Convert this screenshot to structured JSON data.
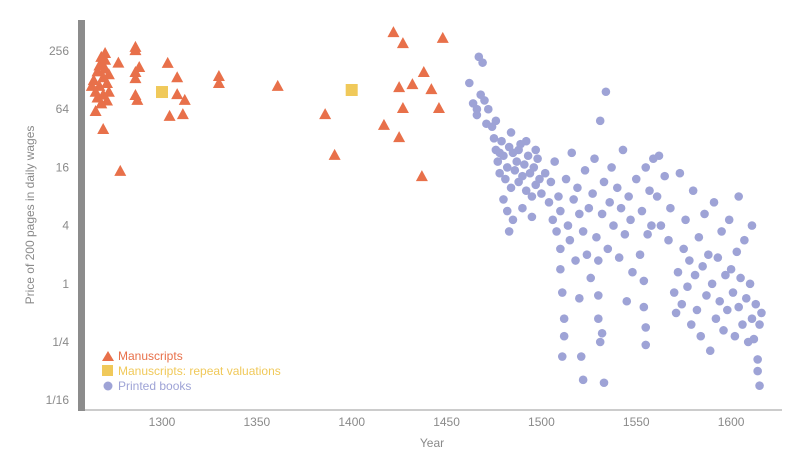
{
  "chart_data": {
    "type": "scatter",
    "title": "",
    "xlabel": "Year",
    "ylabel": "Price of 200 pages in daily wages",
    "y_scale": "log2",
    "y_values_are_log2": true,
    "xlim": [
      1258,
      1627
    ],
    "ylim_log2": [
      -4.3,
      9.1
    ],
    "x_ticks": [
      1300,
      1350,
      1400,
      1450,
      1500,
      1550,
      1600
    ],
    "x_tick_labels": [
      "1300",
      "1350",
      "1400",
      "1450",
      "1500",
      "1550",
      "1600"
    ],
    "y_ticks_log2": [
      8,
      6,
      4,
      2,
      0,
      -2,
      -4
    ],
    "y_tick_labels": [
      "256",
      "64",
      "16",
      "4",
      "1",
      "1/4",
      "1/16"
    ],
    "grid": false,
    "legend_position": "bottom-left",
    "colors": {
      "manuscripts": "#E8704A",
      "repeat": "#F0C95A",
      "printed": "#9EA3D6",
      "axis": "#8c8c8c"
    },
    "series": [
      {
        "name": "Manuscripts",
        "marker": "triangle",
        "points": [
          [
            1270,
            7.93
          ],
          [
            1277,
            7.6
          ],
          [
            1286,
            8.14
          ],
          [
            1286,
            8.03
          ],
          [
            1288,
            7.45
          ],
          [
            1286,
            7.28
          ],
          [
            1286,
            7.07
          ],
          [
            1286,
            6.49
          ],
          [
            1287,
            6.32
          ],
          [
            1278,
            3.88
          ],
          [
            1269,
            5.32
          ],
          [
            1265,
            5.94
          ],
          [
            1303,
            7.59
          ],
          [
            1308,
            7.1
          ],
          [
            1308,
            6.52
          ],
          [
            1312,
            6.32
          ],
          [
            1304,
            5.77
          ],
          [
            1311,
            5.83
          ],
          [
            1330,
            7.14
          ],
          [
            1330,
            6.9
          ],
          [
            1361,
            6.8
          ],
          [
            1386,
            5.83
          ],
          [
            1391,
            4.43
          ],
          [
            1417,
            5.46
          ],
          [
            1422,
            8.65
          ],
          [
            1427,
            8.27
          ],
          [
            1425,
            6.76
          ],
          [
            1432,
            6.86
          ],
          [
            1438,
            7.28
          ],
          [
            1442,
            6.69
          ],
          [
            1427,
            6.04
          ],
          [
            1425,
            5.04
          ],
          [
            1437,
            3.7
          ],
          [
            1446,
            6.04
          ],
          [
            1448,
            8.45
          ],
          [
            1264,
            7.0
          ],
          [
            1265,
            6.6
          ],
          [
            1266,
            7.3
          ],
          [
            1267,
            6.8
          ],
          [
            1268,
            7.6
          ],
          [
            1268,
            6.2
          ],
          [
            1269,
            7.1
          ],
          [
            1269,
            6.5
          ],
          [
            1270,
            7.4
          ],
          [
            1271,
            6.9
          ],
          [
            1271,
            6.3
          ],
          [
            1272,
            7.2
          ],
          [
            1266,
            6.4
          ],
          [
            1267,
            7.5
          ],
          [
            1270,
            7.7
          ],
          [
            1272,
            6.6
          ],
          [
            1263,
            6.8
          ],
          [
            1268,
            7.8
          ]
        ]
      },
      {
        "name": "Manuscripts: repeat valuations",
        "marker": "square",
        "points": [
          [
            1300,
            6.59
          ],
          [
            1400,
            6.66
          ]
        ]
      },
      {
        "name": "Printed books",
        "marker": "circle",
        "points": [
          [
            1462,
            6.9
          ],
          [
            1464,
            6.2
          ],
          [
            1466,
            6.0
          ],
          [
            1467,
            7.8
          ],
          [
            1469,
            7.6
          ],
          [
            1468,
            6.5
          ],
          [
            1470,
            6.3
          ],
          [
            1466,
            5.8
          ],
          [
            1471,
            5.5
          ],
          [
            1472,
            6.0
          ],
          [
            1474,
            5.4
          ],
          [
            1475,
            5.0
          ],
          [
            1476,
            4.6
          ],
          [
            1477,
            4.2
          ],
          [
            1478,
            3.8
          ],
          [
            1479,
            4.9
          ],
          [
            1480,
            4.4
          ],
          [
            1481,
            3.6
          ],
          [
            1482,
            4.0
          ],
          [
            1483,
            4.7
          ],
          [
            1484,
            3.3
          ],
          [
            1485,
            4.5
          ],
          [
            1486,
            3.9
          ],
          [
            1487,
            4.2
          ],
          [
            1488,
            3.5
          ],
          [
            1489,
            4.8
          ],
          [
            1490,
            3.7
          ],
          [
            1491,
            4.1
          ],
          [
            1492,
            3.2
          ],
          [
            1493,
            4.4
          ],
          [
            1494,
            3.8
          ],
          [
            1495,
            3.0
          ],
          [
            1496,
            4.0
          ],
          [
            1497,
            3.4
          ],
          [
            1498,
            4.3
          ],
          [
            1499,
            3.6
          ],
          [
            1500,
            3.1
          ],
          [
            1482,
            2.5
          ],
          [
            1483,
            1.8
          ],
          [
            1480,
            2.9
          ],
          [
            1485,
            2.2
          ],
          [
            1490,
            2.6
          ],
          [
            1495,
            2.3
          ],
          [
            1478,
            4.5
          ],
          [
            1484,
            5.2
          ],
          [
            1476,
            5.6
          ],
          [
            1488,
            4.6
          ],
          [
            1492,
            4.9
          ],
          [
            1497,
            4.6
          ],
          [
            1502,
            3.8
          ],
          [
            1504,
            2.8
          ],
          [
            1505,
            3.5
          ],
          [
            1506,
            2.2
          ],
          [
            1507,
            4.2
          ],
          [
            1508,
            1.8
          ],
          [
            1509,
            3.0
          ],
          [
            1510,
            2.5
          ],
          [
            1510,
            1.2
          ],
          [
            1510,
            0.5
          ],
          [
            1511,
            -0.3
          ],
          [
            1512,
            -1.2
          ],
          [
            1512,
            -1.8
          ],
          [
            1511,
            -2.5
          ],
          [
            1513,
            3.6
          ],
          [
            1514,
            2.0
          ],
          [
            1515,
            1.5
          ],
          [
            1516,
            4.5
          ],
          [
            1517,
            2.9
          ],
          [
            1518,
            0.8
          ],
          [
            1519,
            3.3
          ],
          [
            1520,
            2.4
          ],
          [
            1520,
            -0.5
          ],
          [
            1521,
            -2.5
          ],
          [
            1522,
            1.8
          ],
          [
            1522,
            -3.3
          ],
          [
            1523,
            3.9
          ],
          [
            1524,
            1.0
          ],
          [
            1525,
            2.6
          ],
          [
            1526,
            0.2
          ],
          [
            1527,
            3.1
          ],
          [
            1528,
            4.3
          ],
          [
            1529,
            1.6
          ],
          [
            1530,
            0.8
          ],
          [
            1530,
            -0.4
          ],
          [
            1530,
            -1.2
          ],
          [
            1531,
            -2.0
          ],
          [
            1531,
            5.6
          ],
          [
            1532,
            2.4
          ],
          [
            1532,
            -1.7
          ],
          [
            1533,
            3.5
          ],
          [
            1533,
            -3.4
          ],
          [
            1534,
            6.6
          ],
          [
            1535,
            1.2
          ],
          [
            1536,
            2.8
          ],
          [
            1537,
            4.0
          ],
          [
            1538,
            2.0
          ],
          [
            1540,
            3.3
          ],
          [
            1541,
            0.9
          ],
          [
            1542,
            2.6
          ],
          [
            1543,
            4.6
          ],
          [
            1544,
            1.7
          ],
          [
            1545,
            -0.6
          ],
          [
            1546,
            3.0
          ],
          [
            1547,
            2.2
          ],
          [
            1548,
            0.4
          ],
          [
            1550,
            3.6
          ],
          [
            1552,
            1.0
          ],
          [
            1553,
            2.5
          ],
          [
            1554,
            0.1
          ],
          [
            1554,
            -0.8
          ],
          [
            1555,
            -1.5
          ],
          [
            1555,
            -2.1
          ],
          [
            1555,
            4.0
          ],
          [
            1556,
            1.7
          ],
          [
            1557,
            3.2
          ],
          [
            1558,
            2.0
          ],
          [
            1559,
            4.3
          ],
          [
            1561,
            3.0
          ],
          [
            1562,
            4.4
          ],
          [
            1563,
            2.0
          ],
          [
            1565,
            3.7
          ],
          [
            1567,
            1.5
          ],
          [
            1568,
            2.6
          ],
          [
            1570,
            -0.3
          ],
          [
            1571,
            -1.0
          ],
          [
            1572,
            0.4
          ],
          [
            1573,
            3.8
          ],
          [
            1574,
            -0.7
          ],
          [
            1575,
            1.2
          ],
          [
            1576,
            2.2
          ],
          [
            1577,
            -0.1
          ],
          [
            1578,
            0.8
          ],
          [
            1579,
            -1.4
          ],
          [
            1580,
            3.2
          ],
          [
            1581,
            0.3
          ],
          [
            1582,
            -0.9
          ],
          [
            1583,
            1.6
          ],
          [
            1584,
            -1.8
          ],
          [
            1585,
            0.6
          ],
          [
            1586,
            2.4
          ],
          [
            1587,
            -0.4
          ],
          [
            1588,
            1.0
          ],
          [
            1589,
            -2.3
          ],
          [
            1590,
            0.0
          ],
          [
            1591,
            2.8
          ],
          [
            1592,
            -1.2
          ],
          [
            1593,
            0.9
          ],
          [
            1594,
            -0.6
          ],
          [
            1595,
            1.8
          ],
          [
            1596,
            -1.6
          ],
          [
            1597,
            0.3
          ],
          [
            1598,
            -0.9
          ],
          [
            1599,
            2.2
          ],
          [
            1600,
            0.5
          ],
          [
            1601,
            -0.3
          ],
          [
            1602,
            -1.8
          ],
          [
            1603,
            1.1
          ],
          [
            1604,
            -0.8
          ],
          [
            1605,
            0.2
          ],
          [
            1606,
            -1.4
          ],
          [
            1607,
            1.5
          ],
          [
            1608,
            -0.5
          ],
          [
            1609,
            -2.0
          ],
          [
            1610,
            0.0
          ],
          [
            1611,
            -1.2
          ],
          [
            1612,
            -1.9
          ],
          [
            1613,
            -0.7
          ],
          [
            1614,
            -2.6
          ],
          [
            1614,
            -3.0
          ],
          [
            1615,
            -3.5
          ],
          [
            1615,
            -1.4
          ],
          [
            1616,
            -1.0
          ],
          [
            1604,
            3.0
          ],
          [
            1611,
            2.0
          ]
        ]
      }
    ]
  }
}
